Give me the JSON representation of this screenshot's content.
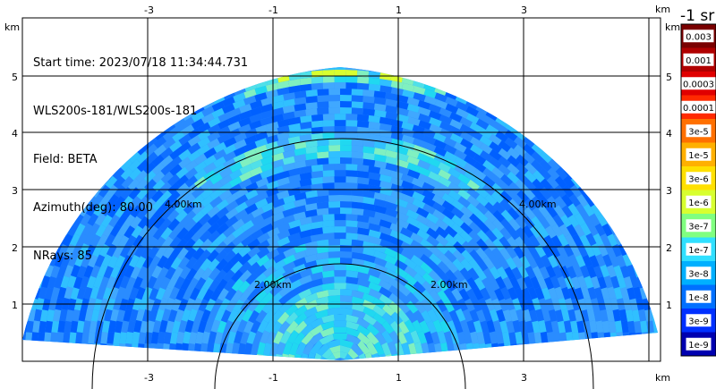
{
  "info": {
    "start_time": "Start time: 2023/07/18 11:34:44.731",
    "instrument": "WLS200s-181/WLS200s-181",
    "field": "Field: BETA",
    "azimuth": "Azimuth(deg): 80.00",
    "nrays": "NRays: 85"
  },
  "axes": {
    "unit": "km",
    "x_ticks": [
      "-3",
      "-1",
      "1",
      "3"
    ],
    "y_ticks": [
      "1",
      "2",
      "3",
      "4",
      "5"
    ]
  },
  "range_rings": {
    "labels": [
      "2.00km",
      "2.00km",
      "4.00km",
      "4.00km"
    ]
  },
  "colorbar": {
    "title": "-1 sr",
    "labels": [
      "0.003",
      "0.001",
      "0.0003",
      "0.0001",
      "3e-5",
      "1e-5",
      "3e-6",
      "1e-6",
      "3e-7",
      "1e-7",
      "3e-8",
      "1e-8",
      "3e-9",
      "1e-9"
    ],
    "colors": [
      "#7a0000",
      "#b00000",
      "#e00000",
      "#ff2a00",
      "#ff7000",
      "#ffb000",
      "#ffe000",
      "#d8ff30",
      "#80ff80",
      "#30e0ff",
      "#00b0ff",
      "#0070ff",
      "#0030ff",
      "#0000b0"
    ]
  }
}
